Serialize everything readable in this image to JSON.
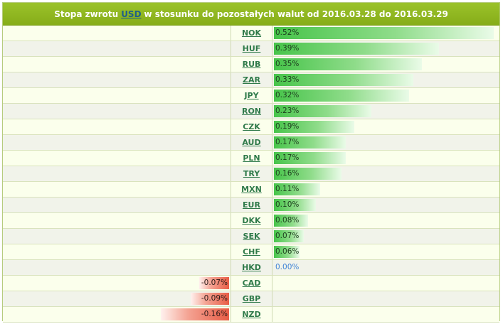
{
  "header": {
    "title_prefix": "Stopa zwrotu",
    "base_currency": "USD",
    "title_suffix": "w stosunku do pozostałych walut od 2016.03.28 do 2016.03.29"
  },
  "colors": {
    "positive": "#47c44a",
    "negative": "#e85c45",
    "zero": "#3f83d6"
  },
  "chart_data": {
    "type": "bar",
    "orientation": "horizontal",
    "title": "Stopa zwrotu USD w stosunku do pozostałych walut od 2016.03.28 do 2016.03.29",
    "categories": [
      "NOK",
      "HUF",
      "RUB",
      "ZAR",
      "JPY",
      "RON",
      "CZK",
      "AUD",
      "PLN",
      "TRY",
      "MXN",
      "EUR",
      "DKK",
      "SEK",
      "CHF",
      "HKD",
      "CAD",
      "GBP",
      "NZD"
    ],
    "values": [
      0.52,
      0.39,
      0.35,
      0.33,
      0.32,
      0.23,
      0.19,
      0.17,
      0.17,
      0.16,
      0.11,
      0.1,
      0.08,
      0.07,
      0.06,
      0.0,
      -0.07,
      -0.09,
      -0.16
    ],
    "labels": [
      "0.52%",
      "0.39%",
      "0.35%",
      "0.33%",
      "0.32%",
      "0.23%",
      "0.19%",
      "0.17%",
      "0.17%",
      "0.16%",
      "0.11%",
      "0.10%",
      "0.08%",
      "0.07%",
      "0.06%",
      "0.00%",
      "-0.07%",
      "-0.09%",
      "-0.16%"
    ],
    "max_abs": 0.52
  }
}
